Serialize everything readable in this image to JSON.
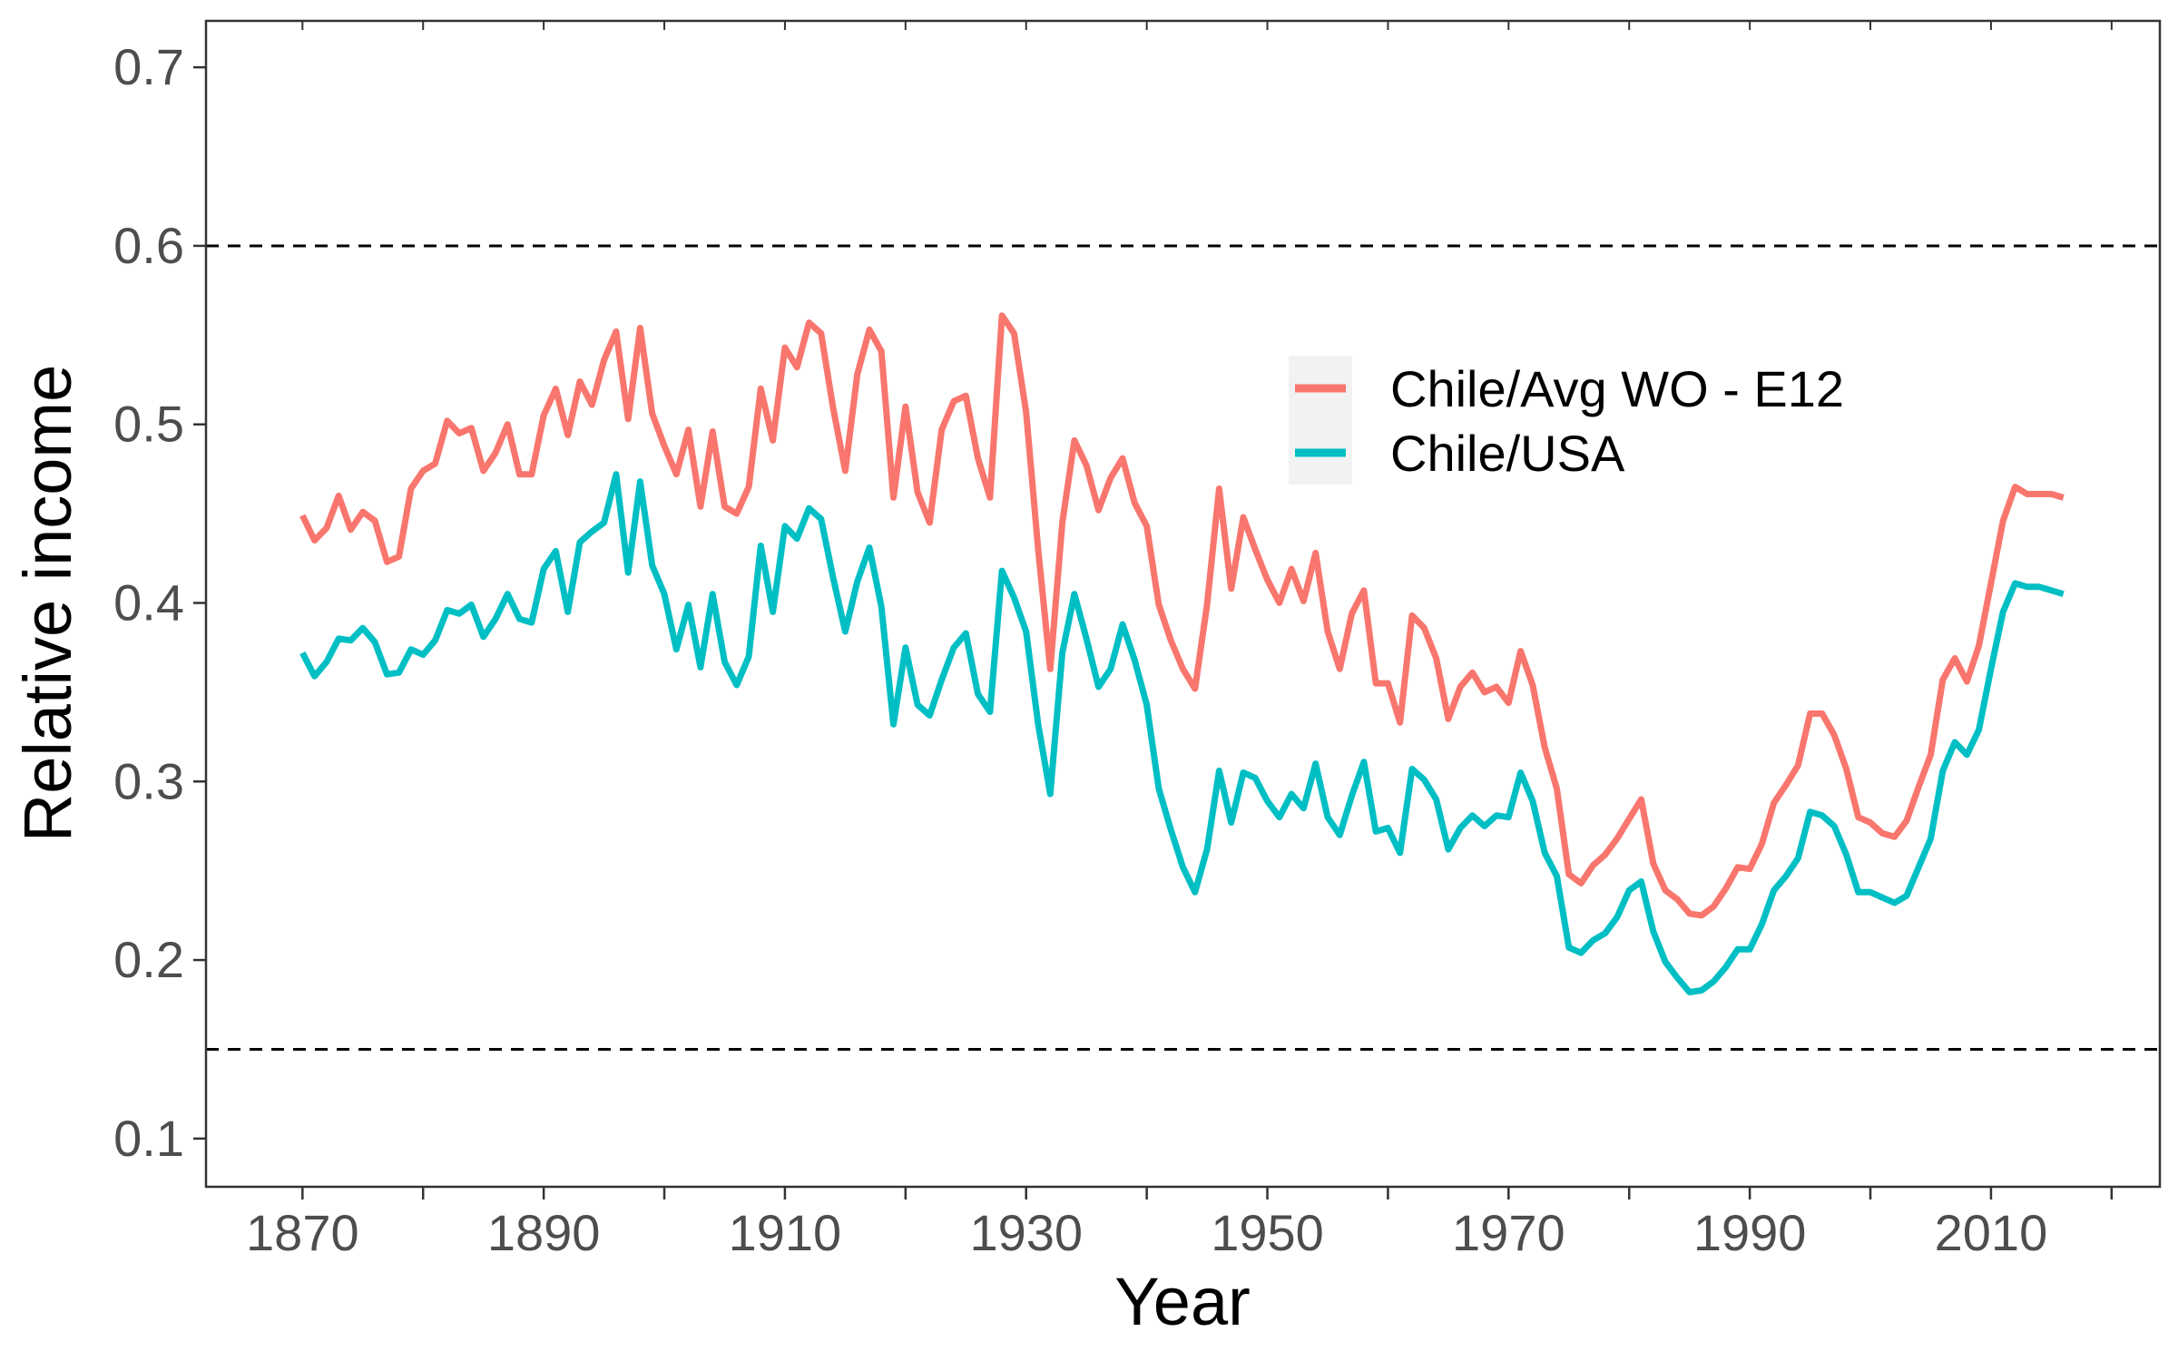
{
  "chart_data": {
    "type": "line",
    "title": "",
    "xlabel": "Year",
    "ylabel": "Relative income",
    "xlim": [
      1862,
      2024
    ],
    "ylim": [
      0.073,
      0.726
    ],
    "xticks": [
      1870,
      1890,
      1910,
      1930,
      1950,
      1970,
      1990,
      2010
    ],
    "xtick_labels": [
      "1870",
      "1890",
      "1910",
      "1930",
      "1950",
      "1970",
      "1990",
      "2010"
    ],
    "yticks": [
      0.1,
      0.2,
      0.3,
      0.4,
      0.5,
      0.6,
      0.7
    ],
    "ytick_labels": [
      "0.1",
      "0.2",
      "0.3",
      "0.4",
      "0.5",
      "0.6",
      "0.7"
    ],
    "grid": false,
    "legend_position": "top-right",
    "reference_lines": [
      {
        "y": 0.6,
        "style": "dashed",
        "color": "#000000"
      },
      {
        "y": 0.15,
        "style": "dashed",
        "color": "#000000"
      }
    ],
    "series": [
      {
        "name": "Chile/Avg WO - E12",
        "color": "#F8766D",
        "points": [
          [
            1870,
            0.449
          ],
          [
            1871,
            0.435
          ],
          [
            1872,
            0.442
          ],
          [
            1873,
            0.46
          ],
          [
            1874,
            0.441
          ],
          [
            1875,
            0.451
          ],
          [
            1876,
            0.446
          ],
          [
            1877,
            0.423
          ],
          [
            1878,
            0.426
          ],
          [
            1879,
            0.464
          ],
          [
            1880,
            0.474
          ],
          [
            1881,
            0.478
          ],
          [
            1882,
            0.502
          ],
          [
            1883,
            0.495
          ],
          [
            1884,
            0.498
          ],
          [
            1885,
            0.474
          ],
          [
            1886,
            0.484
          ],
          [
            1887,
            0.5
          ],
          [
            1888,
            0.472
          ],
          [
            1889,
            0.472
          ],
          [
            1890,
            0.505
          ],
          [
            1891,
            0.52
          ],
          [
            1892,
            0.494
          ],
          [
            1893,
            0.524
          ],
          [
            1894,
            0.511
          ],
          [
            1895,
            0.536
          ],
          [
            1896,
            0.552
          ],
          [
            1897,
            0.503
          ],
          [
            1898,
            0.554
          ],
          [
            1899,
            0.506
          ],
          [
            1900,
            0.488
          ],
          [
            1901,
            0.472
          ],
          [
            1902,
            0.497
          ],
          [
            1903,
            0.454
          ],
          [
            1904,
            0.496
          ],
          [
            1905,
            0.454
          ],
          [
            1906,
            0.45
          ],
          [
            1907,
            0.465
          ],
          [
            1908,
            0.52
          ],
          [
            1909,
            0.491
          ],
          [
            1910,
            0.543
          ],
          [
            1911,
            0.532
          ],
          [
            1912,
            0.557
          ],
          [
            1913,
            0.551
          ],
          [
            1914,
            0.509
          ],
          [
            1915,
            0.474
          ],
          [
            1916,
            0.528
          ],
          [
            1917,
            0.553
          ],
          [
            1918,
            0.541
          ],
          [
            1919,
            0.459
          ],
          [
            1920,
            0.51
          ],
          [
            1921,
            0.462
          ],
          [
            1922,
            0.445
          ],
          [
            1923,
            0.497
          ],
          [
            1924,
            0.513
          ],
          [
            1925,
            0.516
          ],
          [
            1926,
            0.481
          ],
          [
            1927,
            0.459
          ],
          [
            1928,
            0.561
          ],
          [
            1929,
            0.551
          ],
          [
            1930,
            0.507
          ],
          [
            1931,
            0.43
          ],
          [
            1932,
            0.363
          ],
          [
            1933,
            0.445
          ],
          [
            1934,
            0.491
          ],
          [
            1935,
            0.477
          ],
          [
            1936,
            0.452
          ],
          [
            1937,
            0.47
          ],
          [
            1938,
            0.481
          ],
          [
            1939,
            0.456
          ],
          [
            1940,
            0.443
          ],
          [
            1941,
            0.399
          ],
          [
            1942,
            0.379
          ],
          [
            1943,
            0.363
          ],
          [
            1944,
            0.352
          ],
          [
            1945,
            0.399
          ],
          [
            1946,
            0.464
          ],
          [
            1947,
            0.408
          ],
          [
            1948,
            0.448
          ],
          [
            1949,
            0.43
          ],
          [
            1950,
            0.413
          ],
          [
            1951,
            0.4
          ],
          [
            1952,
            0.419
          ],
          [
            1953,
            0.401
          ],
          [
            1954,
            0.428
          ],
          [
            1955,
            0.384
          ],
          [
            1956,
            0.363
          ],
          [
            1957,
            0.394
          ],
          [
            1958,
            0.407
          ],
          [
            1959,
            0.355
          ],
          [
            1960,
            0.355
          ],
          [
            1961,
            0.333
          ],
          [
            1962,
            0.393
          ],
          [
            1963,
            0.386
          ],
          [
            1964,
            0.369
          ],
          [
            1965,
            0.335
          ],
          [
            1966,
            0.353
          ],
          [
            1967,
            0.361
          ],
          [
            1968,
            0.35
          ],
          [
            1969,
            0.353
          ],
          [
            1970,
            0.344
          ],
          [
            1971,
            0.373
          ],
          [
            1972,
            0.354
          ],
          [
            1973,
            0.319
          ],
          [
            1974,
            0.296
          ],
          [
            1975,
            0.248
          ],
          [
            1976,
            0.243
          ],
          [
            1977,
            0.253
          ],
          [
            1978,
            0.259
          ],
          [
            1979,
            0.268
          ],
          [
            1980,
            0.279
          ],
          [
            1981,
            0.29
          ],
          [
            1982,
            0.254
          ],
          [
            1983,
            0.239
          ],
          [
            1984,
            0.234
          ],
          [
            1985,
            0.226
          ],
          [
            1986,
            0.225
          ],
          [
            1987,
            0.23
          ],
          [
            1988,
            0.24
          ],
          [
            1989,
            0.252
          ],
          [
            1990,
            0.251
          ],
          [
            1991,
            0.265
          ],
          [
            1992,
            0.288
          ],
          [
            1993,
            0.298
          ],
          [
            1994,
            0.309
          ],
          [
            1995,
            0.338
          ],
          [
            1996,
            0.338
          ],
          [
            1997,
            0.326
          ],
          [
            1998,
            0.307
          ],
          [
            1999,
            0.28
          ],
          [
            2000,
            0.277
          ],
          [
            2001,
            0.271
          ],
          [
            2002,
            0.269
          ],
          [
            2003,
            0.278
          ],
          [
            2004,
            0.297
          ],
          [
            2005,
            0.315
          ],
          [
            2006,
            0.357
          ],
          [
            2007,
            0.369
          ],
          [
            2008,
            0.356
          ],
          [
            2009,
            0.376
          ],
          [
            2010,
            0.411
          ],
          [
            2011,
            0.446
          ],
          [
            2012,
            0.465
          ],
          [
            2013,
            0.461
          ],
          [
            2014,
            0.461
          ],
          [
            2015,
            0.461
          ],
          [
            2016,
            0.459
          ]
        ]
      },
      {
        "name": "Chile/USA",
        "color": "#00BFC4",
        "points": [
          [
            1870,
            0.372
          ],
          [
            1871,
            0.359
          ],
          [
            1872,
            0.367
          ],
          [
            1873,
            0.38
          ],
          [
            1874,
            0.379
          ],
          [
            1875,
            0.386
          ],
          [
            1876,
            0.378
          ],
          [
            1877,
            0.36
          ],
          [
            1878,
            0.361
          ],
          [
            1879,
            0.374
          ],
          [
            1880,
            0.371
          ],
          [
            1881,
            0.379
          ],
          [
            1882,
            0.396
          ],
          [
            1883,
            0.394
          ],
          [
            1884,
            0.399
          ],
          [
            1885,
            0.381
          ],
          [
            1886,
            0.391
          ],
          [
            1887,
            0.405
          ],
          [
            1888,
            0.391
          ],
          [
            1889,
            0.389
          ],
          [
            1890,
            0.419
          ],
          [
            1891,
            0.429
          ],
          [
            1892,
            0.395
          ],
          [
            1893,
            0.434
          ],
          [
            1894,
            0.44
          ],
          [
            1895,
            0.445
          ],
          [
            1896,
            0.472
          ],
          [
            1897,
            0.417
          ],
          [
            1898,
            0.468
          ],
          [
            1899,
            0.421
          ],
          [
            1900,
            0.405
          ],
          [
            1901,
            0.374
          ],
          [
            1902,
            0.399
          ],
          [
            1903,
            0.364
          ],
          [
            1904,
            0.405
          ],
          [
            1905,
            0.367
          ],
          [
            1906,
            0.354
          ],
          [
            1907,
            0.37
          ],
          [
            1908,
            0.432
          ],
          [
            1909,
            0.395
          ],
          [
            1910,
            0.443
          ],
          [
            1911,
            0.436
          ],
          [
            1912,
            0.453
          ],
          [
            1913,
            0.447
          ],
          [
            1914,
            0.414
          ],
          [
            1915,
            0.384
          ],
          [
            1916,
            0.412
          ],
          [
            1917,
            0.431
          ],
          [
            1918,
            0.398
          ],
          [
            1919,
            0.332
          ],
          [
            1920,
            0.375
          ],
          [
            1921,
            0.343
          ],
          [
            1922,
            0.337
          ],
          [
            1923,
            0.357
          ],
          [
            1924,
            0.375
          ],
          [
            1925,
            0.383
          ],
          [
            1926,
            0.349
          ],
          [
            1927,
            0.339
          ],
          [
            1928,
            0.418
          ],
          [
            1929,
            0.403
          ],
          [
            1930,
            0.384
          ],
          [
            1931,
            0.332
          ],
          [
            1932,
            0.293
          ],
          [
            1933,
            0.372
          ],
          [
            1934,
            0.405
          ],
          [
            1935,
            0.38
          ],
          [
            1936,
            0.353
          ],
          [
            1937,
            0.363
          ],
          [
            1938,
            0.388
          ],
          [
            1939,
            0.368
          ],
          [
            1940,
            0.343
          ],
          [
            1941,
            0.296
          ],
          [
            1942,
            0.273
          ],
          [
            1943,
            0.252
          ],
          [
            1944,
            0.238
          ],
          [
            1945,
            0.262
          ],
          [
            1946,
            0.306
          ],
          [
            1947,
            0.277
          ],
          [
            1948,
            0.305
          ],
          [
            1949,
            0.302
          ],
          [
            1950,
            0.289
          ],
          [
            1951,
            0.28
          ],
          [
            1952,
            0.293
          ],
          [
            1953,
            0.285
          ],
          [
            1954,
            0.31
          ],
          [
            1955,
            0.28
          ],
          [
            1956,
            0.27
          ],
          [
            1957,
            0.292
          ],
          [
            1958,
            0.311
          ],
          [
            1959,
            0.272
          ],
          [
            1960,
            0.274
          ],
          [
            1961,
            0.26
          ],
          [
            1962,
            0.307
          ],
          [
            1963,
            0.301
          ],
          [
            1964,
            0.29
          ],
          [
            1965,
            0.262
          ],
          [
            1966,
            0.274
          ],
          [
            1967,
            0.281
          ],
          [
            1968,
            0.275
          ],
          [
            1969,
            0.281
          ],
          [
            1970,
            0.28
          ],
          [
            1971,
            0.305
          ],
          [
            1972,
            0.289
          ],
          [
            1973,
            0.26
          ],
          [
            1974,
            0.247
          ],
          [
            1975,
            0.207
          ],
          [
            1976,
            0.204
          ],
          [
            1977,
            0.211
          ],
          [
            1978,
            0.215
          ],
          [
            1979,
            0.224
          ],
          [
            1980,
            0.239
          ],
          [
            1981,
            0.244
          ],
          [
            1982,
            0.216
          ],
          [
            1983,
            0.199
          ],
          [
            1984,
            0.19
          ],
          [
            1985,
            0.182
          ],
          [
            1986,
            0.183
          ],
          [
            1987,
            0.188
          ],
          [
            1988,
            0.196
          ],
          [
            1989,
            0.206
          ],
          [
            1990,
            0.206
          ],
          [
            1991,
            0.22
          ],
          [
            1992,
            0.239
          ],
          [
            1993,
            0.247
          ],
          [
            1994,
            0.257
          ],
          [
            1995,
            0.283
          ],
          [
            1996,
            0.281
          ],
          [
            1997,
            0.275
          ],
          [
            1998,
            0.259
          ],
          [
            1999,
            0.238
          ],
          [
            2000,
            0.238
          ],
          [
            2001,
            0.235
          ],
          [
            2002,
            0.232
          ],
          [
            2003,
            0.236
          ],
          [
            2004,
            0.252
          ],
          [
            2005,
            0.268
          ],
          [
            2006,
            0.306
          ],
          [
            2007,
            0.322
          ],
          [
            2008,
            0.315
          ],
          [
            2009,
            0.329
          ],
          [
            2010,
            0.363
          ],
          [
            2011,
            0.395
          ],
          [
            2012,
            0.411
          ],
          [
            2013,
            0.409
          ],
          [
            2014,
            0.409
          ],
          [
            2015,
            0.407
          ],
          [
            2016,
            0.405
          ]
        ]
      }
    ]
  }
}
